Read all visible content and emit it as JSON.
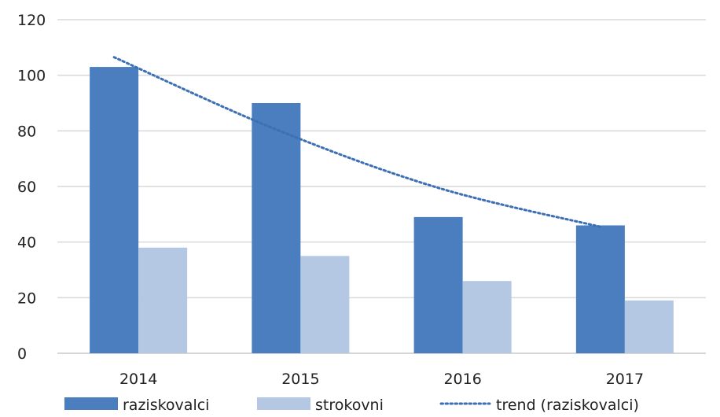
{
  "chart_data": {
    "type": "bar",
    "title": "",
    "xlabel": "",
    "ylabel": "",
    "categories": [
      "2014",
      "2015",
      "2016",
      "2017"
    ],
    "ylim": [
      0,
      120
    ],
    "yticks": [
      0,
      20,
      40,
      60,
      80,
      100,
      120
    ],
    "grid": true,
    "legend_position": "bottom",
    "series": [
      {
        "name": "raziskovalci",
        "kind": "bar",
        "color": "#4a7ebf",
        "values": [
          103,
          90,
          49,
          46
        ]
      },
      {
        "name": "strokovni",
        "kind": "bar",
        "color": "#b4c8e4",
        "values": [
          38,
          35,
          26,
          19
        ]
      },
      {
        "name": "trend (raziskovalci)",
        "kind": "trendline",
        "style": "dotted",
        "color": "#3d6fb3",
        "values": [
          106.5,
          80.5,
          59.5,
          45.5
        ]
      }
    ]
  }
}
